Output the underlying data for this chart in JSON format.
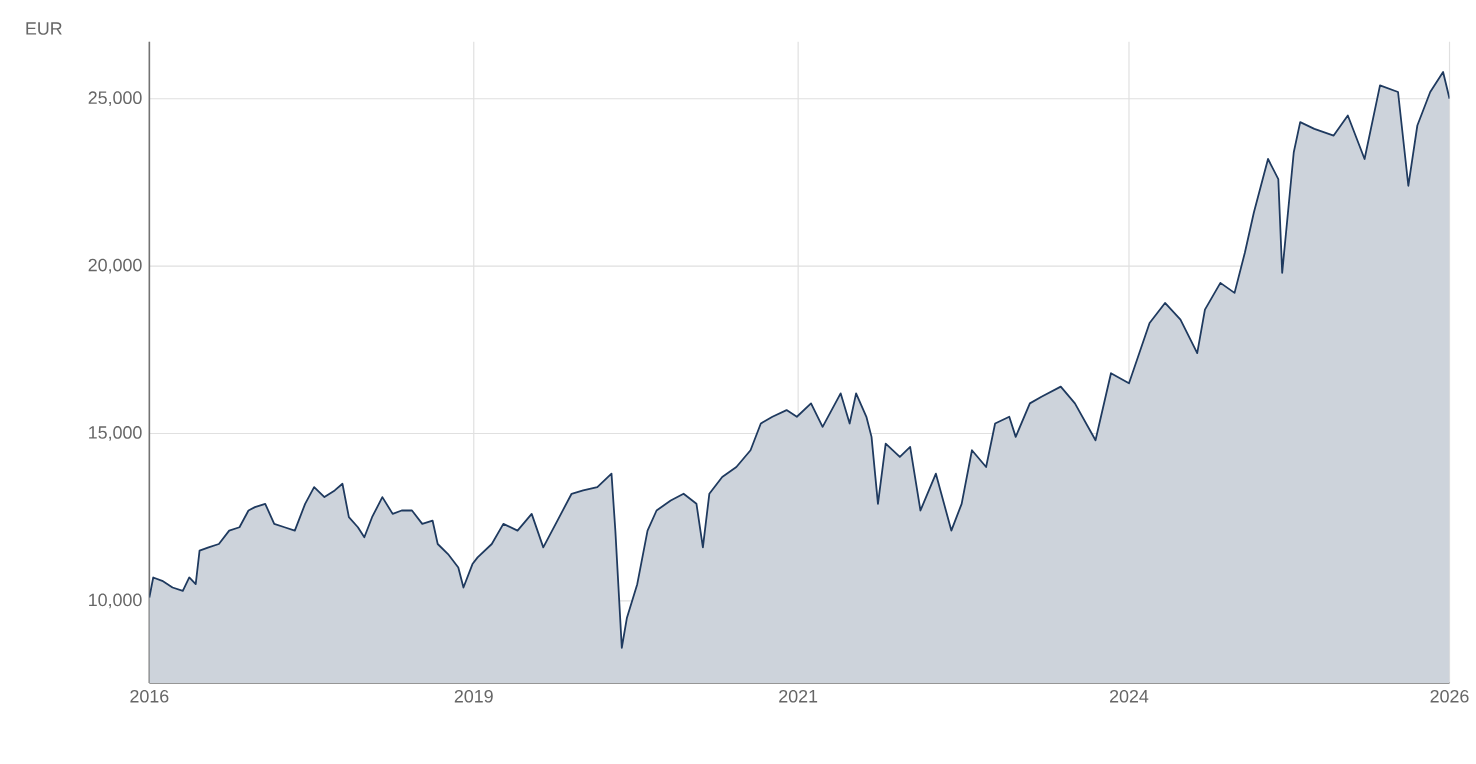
{
  "chart_data": {
    "type": "area",
    "ylabel": "EUR",
    "color": "#1f3a5f",
    "grid": true,
    "x": [
      2016.0,
      2016.03,
      2016.1,
      2016.18,
      2016.26,
      2016.31,
      2016.36,
      2016.39,
      2016.46,
      2016.54,
      2016.62,
      2016.7,
      2016.77,
      2016.82,
      2016.9,
      2016.97,
      2017.05,
      2017.13,
      2017.21,
      2017.28,
      2017.36,
      2017.44,
      2017.5,
      2017.55,
      2017.62,
      2017.67,
      2017.73,
      2017.81,
      2017.89,
      2017.96,
      2018.04,
      2018.12,
      2018.2,
      2018.24,
      2018.32,
      2018.4,
      2018.44,
      2018.51,
      2018.55,
      2018.66,
      2018.75,
      2018.86,
      2018.97,
      2019.06,
      2019.17,
      2019.28,
      2019.37,
      2019.48,
      2019.59,
      2019.62,
      2019.67,
      2019.71,
      2019.79,
      2019.87,
      2019.94,
      2020.05,
      2020.15,
      2020.25,
      2020.3,
      2020.35,
      2020.45,
      2020.56,
      2020.67,
      2020.75,
      2020.84,
      2020.95,
      2021.03,
      2021.14,
      2021.23,
      2021.37,
      2021.44,
      2021.49,
      2021.57,
      2021.61,
      2021.66,
      2021.72,
      2021.83,
      2021.91,
      2021.99,
      2022.11,
      2022.23,
      2022.31,
      2022.39,
      2022.5,
      2022.57,
      2022.68,
      2022.73,
      2022.84,
      2022.93,
      2023.08,
      2023.19,
      2023.35,
      2023.47,
      2023.61,
      2023.77,
      2023.89,
      2024.01,
      2024.14,
      2024.2,
      2024.32,
      2024.43,
      2024.51,
      2024.58,
      2024.69,
      2024.77,
      2024.8,
      2024.89,
      2024.94,
      2025.05,
      2025.2,
      2025.31,
      2025.44,
      2025.56,
      2025.7,
      2025.78,
      2025.85,
      2025.95,
      2026.05,
      2026.1
    ],
    "values": [
      10100,
      10700,
      10600,
      10400,
      10300,
      10700,
      10500,
      11500,
      11600,
      11700,
      12100,
      12200,
      12700,
      12800,
      12900,
      12300,
      12200,
      12100,
      12900,
      13400,
      13100,
      13300,
      13500,
      12500,
      12200,
      11900,
      12500,
      13100,
      12600,
      12700,
      12700,
      12300,
      12400,
      11700,
      11400,
      11000,
      10400,
      11100,
      11300,
      11700,
      12300,
      12100,
      12600,
      11600,
      12400,
      13200,
      13300,
      13400,
      13800,
      12100,
      8600,
      9500,
      10500,
      12100,
      12700,
      13000,
      13200,
      12900,
      11600,
      13200,
      13700,
      14000,
      14500,
      15300,
      15500,
      15700,
      15500,
      15900,
      15200,
      16200,
      15300,
      16200,
      15500,
      14900,
      12900,
      14700,
      14300,
      14600,
      12700,
      13800,
      12100,
      12900,
      14500,
      14000,
      15300,
      15500,
      14900,
      15900,
      16100,
      16400,
      15900,
      14800,
      16800,
      16500,
      18300,
      18900,
      18400,
      17400,
      18700,
      19500,
      19200,
      20400,
      21600,
      23200,
      22600,
      19800,
      23400,
      24300,
      24100,
      23900,
      24500,
      23200,
      25400,
      25200,
      22400,
      24200,
      25200,
      25800,
      25000
    ],
    "xlim": [
      2016.0,
      2026.1
    ],
    "xticks": [
      {
        "value": 2016.0,
        "label": "2016"
      },
      {
        "value": 2018.52,
        "label": "2019"
      },
      {
        "value": 2021.04,
        "label": "2021"
      },
      {
        "value": 2023.61,
        "label": "2024"
      },
      {
        "value": 2026.1,
        "label": "2026"
      }
    ],
    "ylim": [
      7550,
      26700
    ],
    "yticks": [
      {
        "value": 10000,
        "label": "10,000"
      },
      {
        "value": 15000,
        "label": "15,000"
      },
      {
        "value": 20000,
        "label": "20,000"
      },
      {
        "value": 25000,
        "label": "25,000"
      }
    ]
  }
}
